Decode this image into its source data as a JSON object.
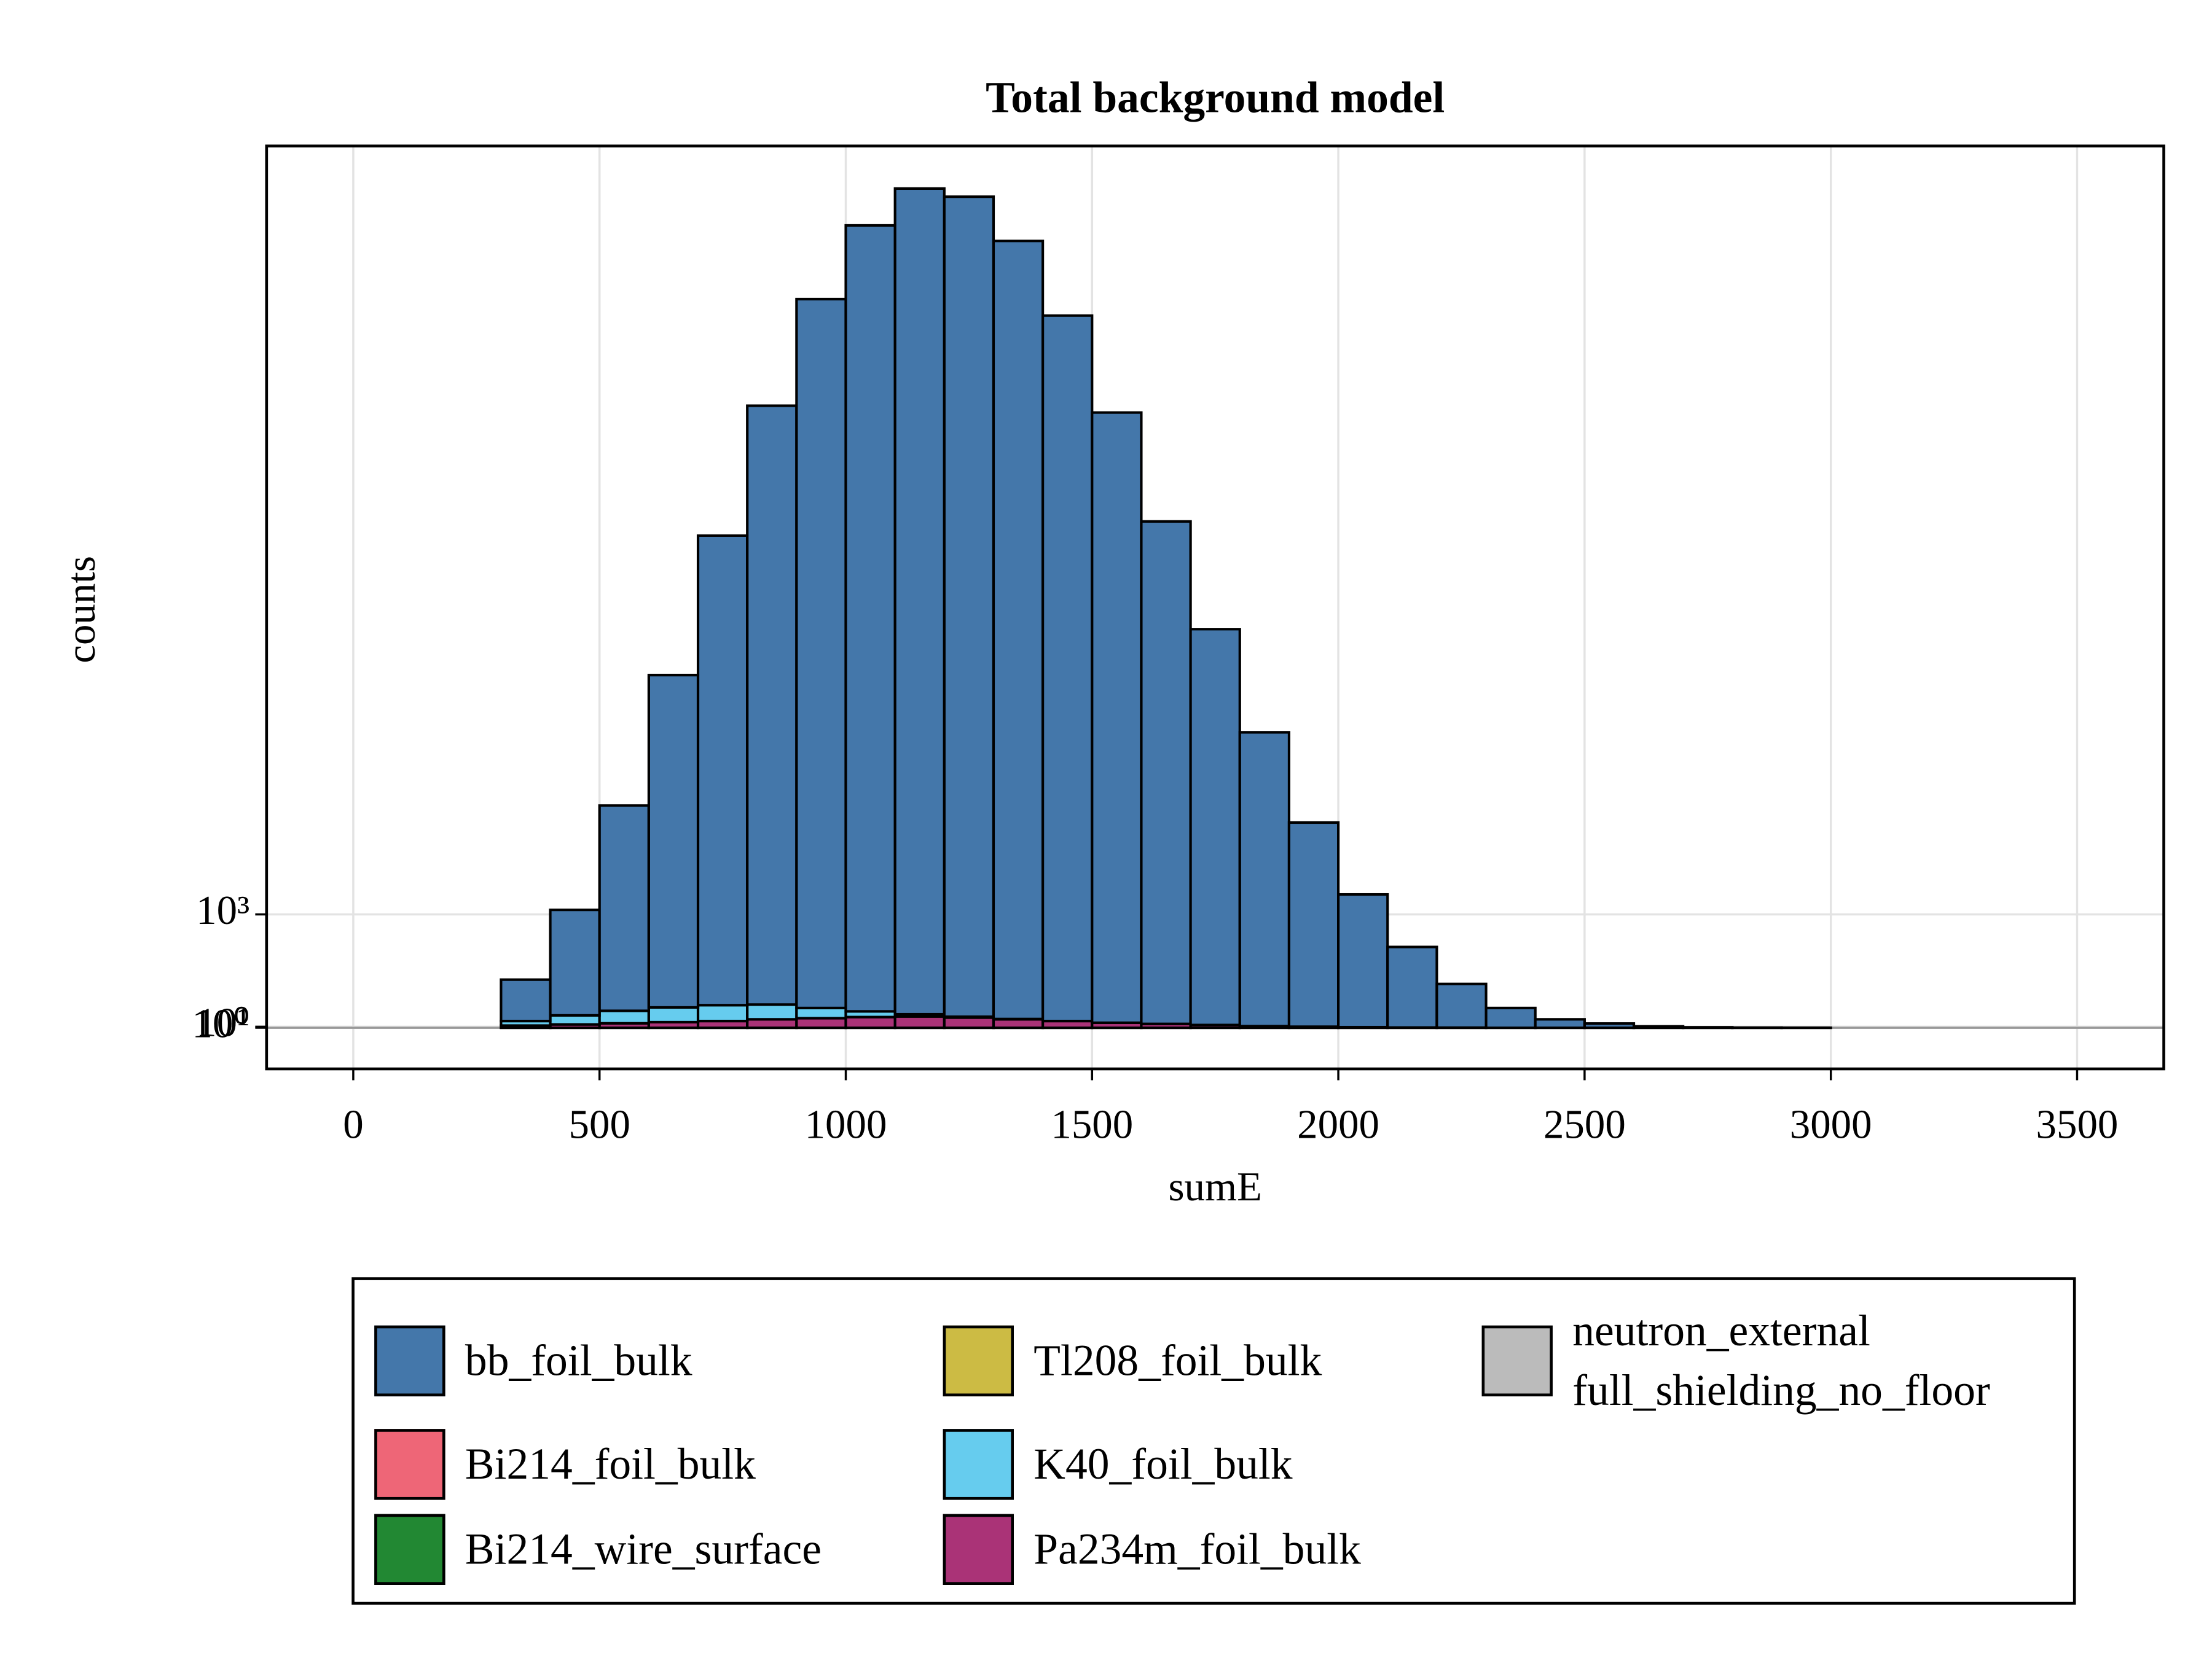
{
  "chart_data": {
    "type": "stacked_histogram",
    "title": "Total background model",
    "xlabel": "sumE",
    "ylabel": "counts",
    "bins": [
      0,
      100,
      200,
      300,
      400,
      500,
      600,
      700,
      800,
      900,
      1000,
      1100,
      1200,
      1300,
      1400,
      1500,
      1600,
      1700,
      1800,
      1900,
      2000,
      2100,
      2200,
      2300,
      2400,
      2500,
      2600,
      2700,
      2800,
      2900,
      3000,
      3100,
      3200,
      3300,
      3400,
      3500
    ],
    "series": [
      {
        "name": "bb_foil_bulk",
        "color": "#4477aa",
        "values": [
          0,
          0,
          0,
          365,
          930,
          1810,
          2930,
          4140,
          5280,
          6250,
          6930,
          7280,
          7230,
          6860,
          6220,
          5380,
          4430,
          3490,
          2590,
          1800,
          1170,
          710,
          385,
          175,
          75,
          38,
          13,
          5,
          2,
          1,
          0,
          0,
          0,
          0,
          0
        ]
      },
      {
        "name": "Bi214_foil_bulk",
        "color": "#ee6677",
        "values": [
          0,
          0,
          0,
          0,
          0,
          0,
          0,
          0,
          0,
          0,
          0,
          0,
          0,
          0,
          0,
          0,
          0,
          0,
          0,
          0,
          0,
          0,
          0,
          0,
          0,
          0,
          0,
          0,
          0,
          0,
          0,
          0,
          0,
          0,
          0
        ]
      },
      {
        "name": "Bi214_wire_surface",
        "color": "#228833",
        "values": [
          0,
          0,
          0,
          0,
          0,
          0,
          0,
          0,
          0,
          0,
          0,
          0,
          0,
          0,
          0,
          0,
          0,
          0,
          0,
          0,
          0,
          0,
          0,
          0,
          0,
          0,
          0,
          0,
          0,
          0,
          0,
          0,
          0,
          0,
          0
        ]
      },
      {
        "name": "Tl208_foil_bulk",
        "color": "#ccbb44",
        "values": [
          0,
          0,
          0,
          0,
          0,
          0,
          0,
          0,
          0,
          0,
          0,
          0,
          0,
          0,
          0,
          0,
          0,
          0,
          0,
          0,
          0,
          0,
          0,
          0,
          0,
          0,
          0,
          0,
          0,
          0,
          0,
          0,
          0,
          0,
          0
        ]
      },
      {
        "name": "K40_foil_bulk",
        "color": "#66ccee",
        "values": [
          0,
          0,
          0,
          40,
          80,
          110,
          130,
          140,
          130,
          90,
          50,
          20,
          8,
          3,
          0,
          0,
          0,
          0,
          0,
          0,
          0,
          0,
          0,
          0,
          0,
          0,
          0,
          0,
          0,
          0,
          0,
          0,
          0,
          0,
          0
        ]
      },
      {
        "name": "Pa234m_foil_bulk",
        "color": "#aa3377",
        "values": [
          0,
          0,
          0,
          20,
          30,
          40,
          50,
          60,
          75,
          85,
          95,
          100,
          90,
          75,
          60,
          45,
          35,
          25,
          15,
          10,
          6,
          3,
          2,
          0,
          0,
          0,
          0,
          0,
          0,
          0,
          0,
          0,
          0,
          0,
          0
        ]
      },
      {
        "name": "neutron_external\nfull_shielding_no_floor",
        "color": "#bbbbbb",
        "values": [
          0,
          0,
          0,
          0,
          0,
          0,
          0,
          0,
          0,
          0,
          0,
          0,
          0,
          0,
          0,
          0,
          0,
          0,
          0,
          0,
          0,
          0,
          0,
          0,
          0,
          0,
          0,
          0,
          0,
          0,
          0,
          0,
          0,
          0,
          0
        ]
      }
    ],
    "xlim": [
      -176,
      3676
    ],
    "xticks": [
      0,
      500,
      1000,
      1500,
      2000,
      2500,
      3000,
      3500
    ],
    "ylim": [
      -362,
      7775
    ],
    "yticks": [
      {
        "value": 1,
        "label": "10⁰"
      },
      {
        "value": 10,
        "label": "10¹"
      },
      {
        "value": 1000,
        "label": "10³"
      }
    ],
    "grid": true
  }
}
